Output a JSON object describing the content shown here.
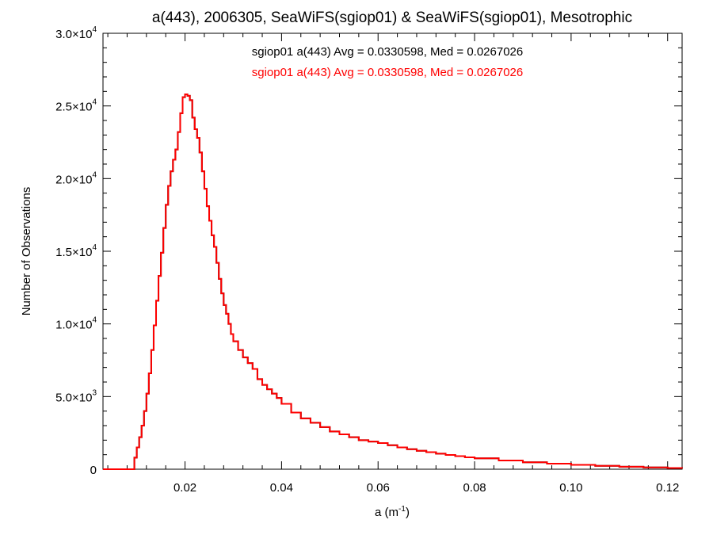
{
  "chart_data": {
    "type": "line",
    "title": "a(443), 2006305, SeaWiFS(sgiop01) & SeaWiFS(sgiop01), Mesotrophic",
    "xlabel_main": "a (m",
    "xlabel_sup": "-1",
    "xlabel_close": ")",
    "ylabel": "Number of Observations",
    "xlim": [
      0.003,
      0.123
    ],
    "ylim": [
      0,
      30000
    ],
    "grid": false,
    "legend_position": "top-center",
    "x_ticks": [
      {
        "value": 0.02,
        "label": "0.02"
      },
      {
        "value": 0.04,
        "label": "0.04"
      },
      {
        "value": 0.06,
        "label": "0.06"
      },
      {
        "value": 0.08,
        "label": "0.08"
      },
      {
        "value": 0.1,
        "label": "0.10"
      },
      {
        "value": 0.12,
        "label": "0.12"
      }
    ],
    "y_ticks": [
      {
        "value": 0,
        "mantissa": "0",
        "exp": ""
      },
      {
        "value": 5000,
        "mantissa": "5.0×10",
        "exp": "3"
      },
      {
        "value": 10000,
        "mantissa": "1.0×10",
        "exp": "4"
      },
      {
        "value": 15000,
        "mantissa": "1.5×10",
        "exp": "4"
      },
      {
        "value": 20000,
        "mantissa": "2.0×10",
        "exp": "4"
      },
      {
        "value": 25000,
        "mantissa": "2.5×10",
        "exp": "4"
      },
      {
        "value": 30000,
        "mantissa": "3.0×10",
        "exp": "4"
      }
    ],
    "series": [
      {
        "name": "sgiop01 a(443) Avg = 0.0330598, Med = 0.0267026",
        "color": "#000000",
        "x": [
          0.003,
          0.009,
          0.0095,
          0.01,
          0.0105,
          0.011,
          0.0115,
          0.012,
          0.0125,
          0.013,
          0.0135,
          0.014,
          0.0145,
          0.015,
          0.0155,
          0.016,
          0.0165,
          0.017,
          0.0175,
          0.018,
          0.0185,
          0.019,
          0.0195,
          0.02,
          0.0205,
          0.021,
          0.0215,
          0.022,
          0.0225,
          0.023,
          0.0235,
          0.024,
          0.0245,
          0.025,
          0.0255,
          0.026,
          0.0265,
          0.027,
          0.0275,
          0.028,
          0.0285,
          0.029,
          0.0295,
          0.03,
          0.031,
          0.032,
          0.033,
          0.034,
          0.035,
          0.036,
          0.037,
          0.038,
          0.039,
          0.04,
          0.042,
          0.044,
          0.046,
          0.048,
          0.05,
          0.052,
          0.054,
          0.056,
          0.058,
          0.06,
          0.062,
          0.064,
          0.066,
          0.068,
          0.07,
          0.072,
          0.074,
          0.076,
          0.078,
          0.08,
          0.085,
          0.09,
          0.095,
          0.1,
          0.105,
          0.11,
          0.115,
          0.12,
          0.123
        ],
        "values": [
          0,
          0,
          800,
          1500,
          2200,
          3000,
          4000,
          5200,
          6600,
          8200,
          9900,
          11600,
          13300,
          14900,
          16600,
          18200,
          19500,
          20500,
          21300,
          22000,
          23200,
          24500,
          25600,
          25800,
          25700,
          25400,
          24200,
          23400,
          22800,
          21800,
          20500,
          19300,
          18100,
          17100,
          16100,
          15300,
          14200,
          13100,
          12100,
          11300,
          10700,
          10000,
          9300,
          8800,
          8200,
          7700,
          7300,
          6900,
          6200,
          5800,
          5500,
          5200,
          4900,
          4500,
          3900,
          3500,
          3200,
          2900,
          2600,
          2400,
          2200,
          2000,
          1900,
          1800,
          1650,
          1500,
          1380,
          1270,
          1170,
          1070,
          980,
          900,
          820,
          750,
          600,
          480,
          380,
          300,
          230,
          170,
          120,
          80,
          60
        ]
      },
      {
        "name": "sgiop01 a(443) Avg = 0.0330598, Med = 0.0267026",
        "color": "#ff0000",
        "x": [
          0.003,
          0.009,
          0.0095,
          0.01,
          0.0105,
          0.011,
          0.0115,
          0.012,
          0.0125,
          0.013,
          0.0135,
          0.014,
          0.0145,
          0.015,
          0.0155,
          0.016,
          0.0165,
          0.017,
          0.0175,
          0.018,
          0.0185,
          0.019,
          0.0195,
          0.02,
          0.0205,
          0.021,
          0.0215,
          0.022,
          0.0225,
          0.023,
          0.0235,
          0.024,
          0.0245,
          0.025,
          0.0255,
          0.026,
          0.0265,
          0.027,
          0.0275,
          0.028,
          0.0285,
          0.029,
          0.0295,
          0.03,
          0.031,
          0.032,
          0.033,
          0.034,
          0.035,
          0.036,
          0.037,
          0.038,
          0.039,
          0.04,
          0.042,
          0.044,
          0.046,
          0.048,
          0.05,
          0.052,
          0.054,
          0.056,
          0.058,
          0.06,
          0.062,
          0.064,
          0.066,
          0.068,
          0.07,
          0.072,
          0.074,
          0.076,
          0.078,
          0.08,
          0.085,
          0.09,
          0.095,
          0.1,
          0.105,
          0.11,
          0.115,
          0.12,
          0.123
        ],
        "values": [
          0,
          0,
          800,
          1500,
          2200,
          3000,
          4000,
          5200,
          6600,
          8200,
          9900,
          11600,
          13300,
          14900,
          16600,
          18200,
          19500,
          20500,
          21300,
          22000,
          23200,
          24500,
          25600,
          25800,
          25700,
          25400,
          24200,
          23400,
          22800,
          21800,
          20500,
          19300,
          18100,
          17100,
          16100,
          15300,
          14200,
          13100,
          12100,
          11300,
          10700,
          10000,
          9300,
          8800,
          8200,
          7700,
          7300,
          6900,
          6200,
          5800,
          5500,
          5200,
          4900,
          4500,
          3900,
          3500,
          3200,
          2900,
          2600,
          2400,
          2200,
          2000,
          1900,
          1800,
          1650,
          1500,
          1380,
          1270,
          1170,
          1070,
          980,
          900,
          820,
          750,
          600,
          480,
          380,
          300,
          230,
          170,
          120,
          80,
          60
        ]
      }
    ]
  }
}
